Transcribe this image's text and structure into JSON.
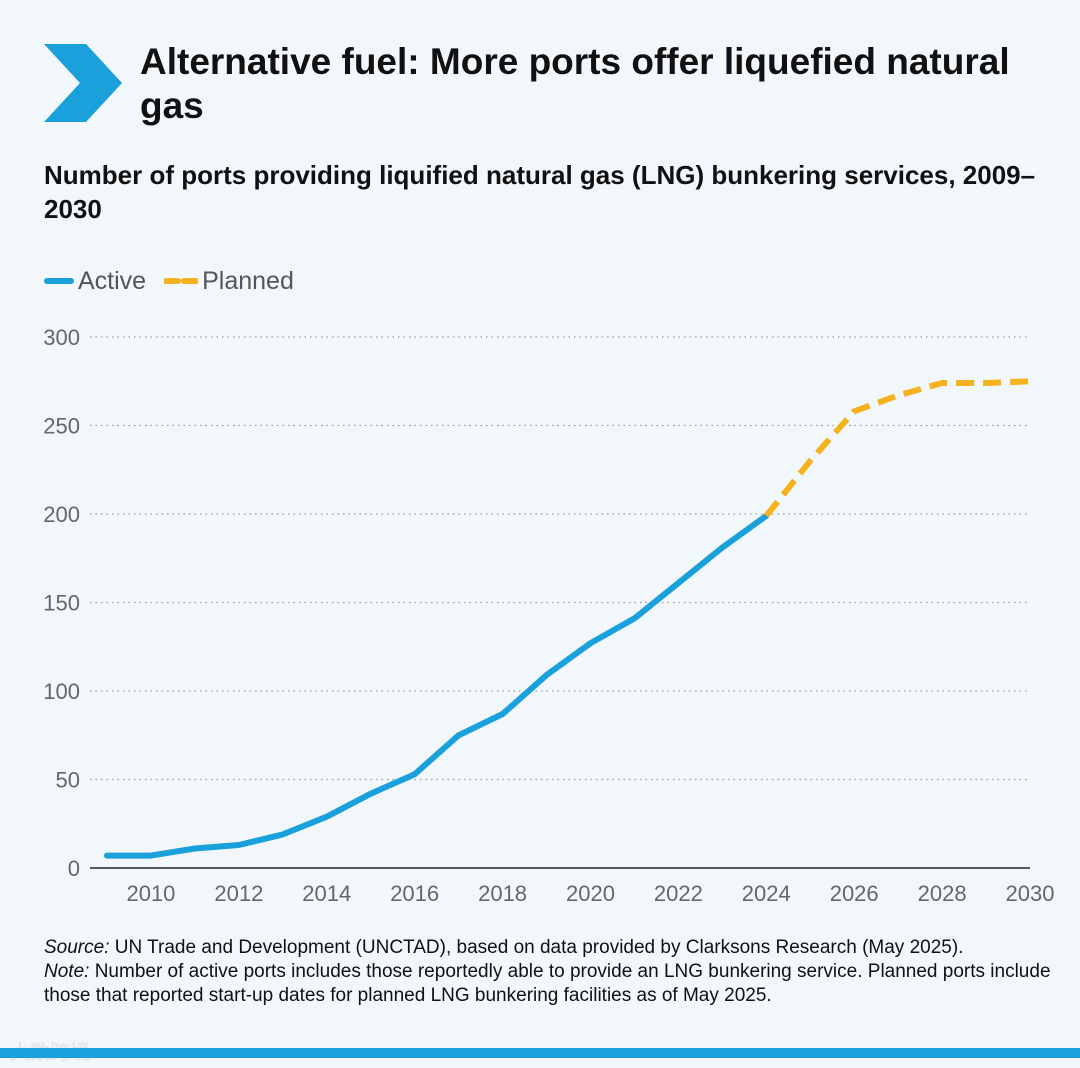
{
  "header": {
    "title": "Alternative fuel: More ports offer liquefied natural gas",
    "subtitle": "Number of ports providing liquified natural gas (LNG) bunkering services, 2009–2030"
  },
  "colors": {
    "accent": "#1aa0da",
    "active": "#1aa0da",
    "planned": "#f5b21e",
    "grid": "#9a9a9a"
  },
  "icons": {
    "header": "chevron-right-icon"
  },
  "chart_data": {
    "type": "line",
    "title": "Number of ports providing liquified natural gas (LNG) bunkering services, 2009–2030",
    "xlabel": "",
    "ylabel": "",
    "xlim": [
      2009,
      2030
    ],
    "ylim": [
      0,
      300
    ],
    "x_ticks": [
      "2010",
      "2012",
      "2014",
      "2016",
      "2018",
      "2020",
      "2022",
      "2024",
      "2026",
      "2028",
      "2030"
    ],
    "y_ticks": [
      "0",
      "50",
      "100",
      "150",
      "200",
      "250",
      "300"
    ],
    "grid": "horizontal dotted",
    "legend_position": "top-left",
    "series": [
      {
        "name": "Active",
        "style": "solid",
        "color": "#1aa0da",
        "x": [
          2009,
          2010,
          2011,
          2012,
          2013,
          2014,
          2015,
          2016,
          2017,
          2018,
          2019,
          2020,
          2021,
          2022,
          2023,
          2024
        ],
        "y": [
          7,
          7,
          11,
          13,
          19,
          29,
          42,
          53,
          75,
          87,
          109,
          127,
          141,
          161,
          181,
          199
        ]
      },
      {
        "name": "Planned",
        "style": "dashed",
        "color": "#f5b21e",
        "x": [
          2024,
          2025,
          2026,
          2027,
          2028,
          2029,
          2030
        ],
        "y": [
          199,
          230,
          258,
          267,
          274,
          274,
          275
        ]
      }
    ]
  },
  "notes": {
    "source_label": "Source:",
    "source_text": " UN Trade and Development (UNCTAD), based on data provided by Clarksons Research (May 2025).",
    "note_label": "Note:",
    "note_text": " Number of active ports includes those reportedly able to provide an LNG bunkering service. Planned ports include those that reported start-up dates for planned LNG bunkering facilities as of May 2025."
  },
  "watermark": "大数跨境"
}
